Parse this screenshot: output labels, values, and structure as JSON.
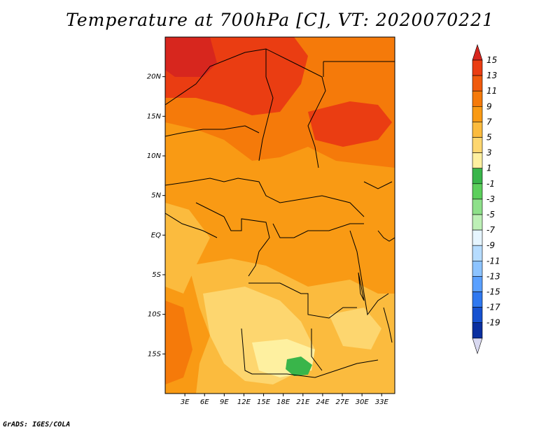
{
  "title": "Temperature at 700hPa [C], VT: 2020070221",
  "footer": "GrADS: IGES/COLA",
  "map": {
    "lon_range": [
      0,
      35
    ],
    "lat_range": [
      -20,
      25
    ],
    "x_ticks": [
      "3E",
      "6E",
      "9E",
      "12E",
      "15E",
      "18E",
      "21E",
      "24E",
      "27E",
      "30E",
      "33E"
    ],
    "x_tick_values": [
      3,
      6,
      9,
      12,
      15,
      18,
      21,
      24,
      27,
      30,
      33
    ],
    "y_ticks": [
      "20N",
      "15N",
      "10N",
      "5N",
      "EQ",
      "5S",
      "10S",
      "15S"
    ],
    "y_tick_values": [
      20,
      15,
      10,
      5,
      0,
      -5,
      -10,
      -15
    ]
  },
  "colorbar": {
    "labels": [
      "15",
      "13",
      "11",
      "9",
      "7",
      "5",
      "3",
      "1",
      "-1",
      "-3",
      "-5",
      "-7",
      "-9",
      "-11",
      "-13",
      "-15",
      "-17",
      "-19"
    ],
    "colors": [
      "#d7261e",
      "#ea3d12",
      "#f05a0d",
      "#f57a0a",
      "#f99a14",
      "#fbbb3e",
      "#fdd66f",
      "#fef0a0",
      "#39b54a",
      "#5ccf5c",
      "#8ee08a",
      "#bdf0b6",
      "#e6f5ff",
      "#b6dcff",
      "#8cc3ff",
      "#5aa0ff",
      "#2f78f0",
      "#1651d0",
      "#0a2fa0",
      "#001070"
    ]
  },
  "legend_title": ""
}
